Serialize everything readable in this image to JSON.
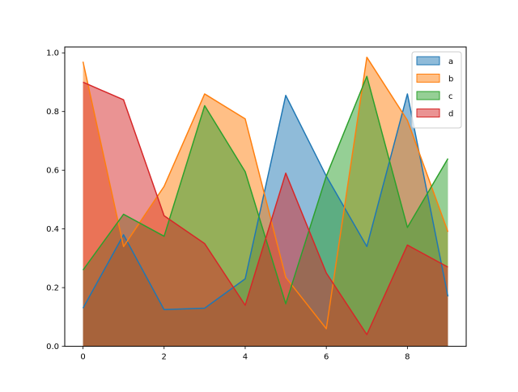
{
  "chart_data": {
    "type": "area",
    "stacked": false,
    "fill_alpha": 0.5,
    "x": [
      0,
      1,
      2,
      3,
      4,
      5,
      6,
      7,
      8,
      9
    ],
    "xlim": [
      -0.45,
      9.45
    ],
    "ylim": [
      0,
      1.02
    ],
    "xticks": [
      "0",
      "2",
      "4",
      "6",
      "8"
    ],
    "yticks": [
      "0.0",
      "0.2",
      "0.4",
      "0.6",
      "0.8",
      "1.0"
    ],
    "grid": false,
    "legend_position": "top-right",
    "series": [
      {
        "name": "a",
        "color": "#1f77b4",
        "values": [
          0.13,
          0.38,
          0.125,
          0.13,
          0.23,
          0.855,
          0.58,
          0.34,
          0.86,
          0.17
        ]
      },
      {
        "name": "b",
        "color": "#ff7f0e",
        "values": [
          0.97,
          0.34,
          0.545,
          0.86,
          0.775,
          0.235,
          0.06,
          0.985,
          0.77,
          0.39
        ]
      },
      {
        "name": "c",
        "color": "#2ca02c",
        "values": [
          0.26,
          0.45,
          0.375,
          0.82,
          0.595,
          0.145,
          0.58,
          0.92,
          0.405,
          0.64
        ]
      },
      {
        "name": "d",
        "color": "#d62728",
        "values": [
          0.9,
          0.84,
          0.445,
          0.35,
          0.14,
          0.59,
          0.25,
          0.04,
          0.345,
          0.27
        ]
      }
    ]
  }
}
